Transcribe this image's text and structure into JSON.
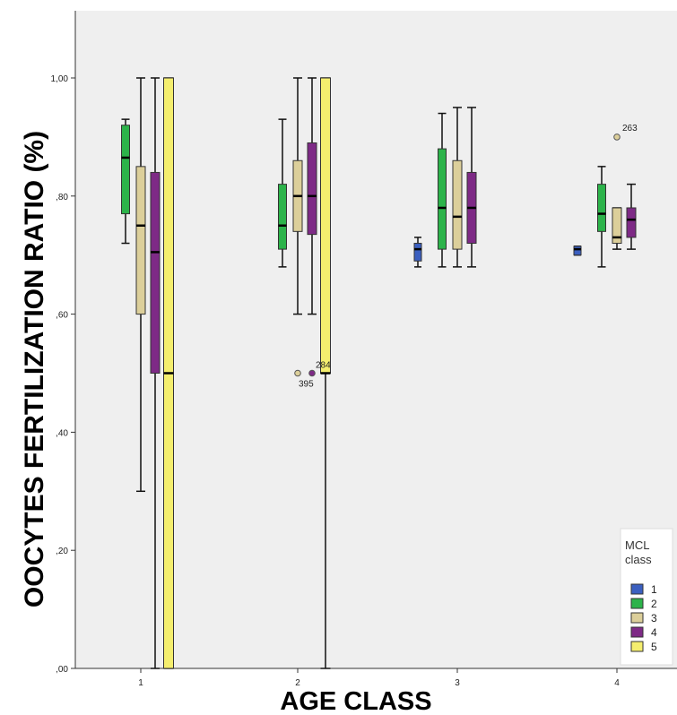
{
  "chart_data": {
    "type": "boxplot",
    "ylabel": "OOCYTES FERTILIZATION RATIO (%)",
    "xlabel": "AGE CLASS",
    "ylim": [
      0,
      1.1
    ],
    "y_ticks": [
      {
        "value": 0.0,
        "label": ",00"
      },
      {
        "value": 0.2,
        "label": ",20"
      },
      {
        "value": 0.4,
        "label": ",40"
      },
      {
        "value": 0.6,
        "label": ",60"
      },
      {
        "value": 0.8,
        "label": ",80"
      },
      {
        "value": 1.0,
        "label": "1,00"
      }
    ],
    "categories": [
      "1",
      "2",
      "3",
      "4"
    ],
    "legend": {
      "title_line1": "MCL",
      "title_line2": "class",
      "placement": "bottom-right"
    },
    "series": [
      {
        "name": "1",
        "color": "#3b5fc0"
      },
      {
        "name": "2",
        "color": "#2cb34a"
      },
      {
        "name": "3",
        "color": "#dccf9a"
      },
      {
        "name": "4",
        "color": "#7e2a86"
      },
      {
        "name": "5",
        "color": "#f4ee6e"
      }
    ],
    "boxes": [
      {
        "category": "1",
        "series": "2",
        "min": 0.72,
        "q1": 0.77,
        "median": 0.865,
        "q3": 0.92,
        "max": 0.93
      },
      {
        "category": "1",
        "series": "3",
        "min": 0.3,
        "q1": 0.6,
        "median": 0.75,
        "q3": 0.85,
        "max": 1.0
      },
      {
        "category": "1",
        "series": "4",
        "min": 0.0,
        "q1": 0.5,
        "median": 0.705,
        "q3": 0.84,
        "max": 1.0
      },
      {
        "category": "1",
        "series": "5",
        "min": 0.0,
        "q1": 0.0,
        "median": 0.5,
        "q3": 1.0,
        "max": 1.0
      },
      {
        "category": "2",
        "series": "2",
        "min": 0.68,
        "q1": 0.71,
        "median": 0.75,
        "q3": 0.82,
        "max": 0.93
      },
      {
        "category": "2",
        "series": "3",
        "min": 0.6,
        "q1": 0.74,
        "median": 0.8,
        "q3": 0.86,
        "max": 1.0
      },
      {
        "category": "2",
        "series": "4",
        "min": 0.6,
        "q1": 0.735,
        "median": 0.8,
        "q3": 0.89,
        "max": 1.0
      },
      {
        "category": "2",
        "series": "5",
        "min": 0.0,
        "q1": 0.5,
        "median": 0.5,
        "q3": 1.0,
        "max": 1.0
      },
      {
        "category": "3",
        "series": "1",
        "min": 0.68,
        "q1": 0.69,
        "median": 0.71,
        "q3": 0.72,
        "max": 0.73
      },
      {
        "category": "3",
        "series": "2",
        "min": 0.68,
        "q1": 0.71,
        "median": 0.78,
        "q3": 0.88,
        "max": 0.94
      },
      {
        "category": "3",
        "series": "3",
        "min": 0.68,
        "q1": 0.71,
        "median": 0.765,
        "q3": 0.86,
        "max": 0.95
      },
      {
        "category": "3",
        "series": "4",
        "min": 0.68,
        "q1": 0.72,
        "median": 0.78,
        "q3": 0.84,
        "max": 0.95
      },
      {
        "category": "4",
        "series": "1",
        "min": 0.7,
        "q1": 0.7,
        "median": 0.71,
        "q3": 0.715,
        "max": 0.715
      },
      {
        "category": "4",
        "series": "2",
        "min": 0.68,
        "q1": 0.74,
        "median": 0.77,
        "q3": 0.82,
        "max": 0.85
      },
      {
        "category": "4",
        "series": "3",
        "min": 0.71,
        "q1": 0.72,
        "median": 0.73,
        "q3": 0.78,
        "max": 0.78
      },
      {
        "category": "4",
        "series": "4",
        "min": 0.71,
        "q1": 0.73,
        "median": 0.76,
        "q3": 0.78,
        "max": 0.82
      }
    ],
    "outliers": [
      {
        "category": "2",
        "series": "3",
        "value": 0.5,
        "label": "395"
      },
      {
        "category": "2",
        "series": "4",
        "value": 0.5,
        "label": "284"
      },
      {
        "category": "4",
        "series": "3",
        "value": 0.9,
        "label": "263"
      }
    ],
    "grid": false
  }
}
